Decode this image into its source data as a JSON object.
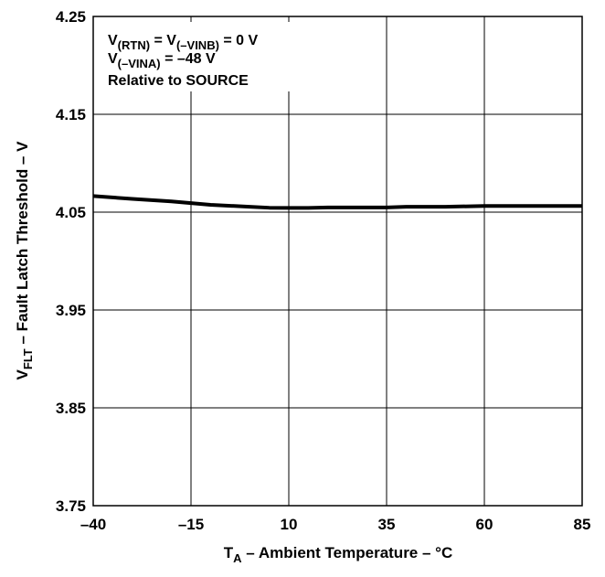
{
  "chart_data": {
    "type": "line",
    "xlabel": {
      "main": "T",
      "sub": "A",
      "rest": " – Ambient Temperature – °C"
    },
    "ylabel": {
      "main": "V",
      "sub": "FLT",
      "rest": " – Fault Latch Threshold – V"
    },
    "xlim": [
      -40,
      85
    ],
    "ylim": [
      3.75,
      4.25
    ],
    "x_ticks": [
      -40,
      -15,
      10,
      35,
      60,
      85
    ],
    "x_tick_labels": [
      "–40",
      "–15",
      "10",
      "35",
      "60",
      "85"
    ],
    "y_ticks": [
      3.75,
      3.85,
      3.95,
      4.05,
      4.15,
      4.25
    ],
    "y_tick_labels": [
      "3.75",
      "3.85",
      "3.95",
      "4.05",
      "4.15",
      "4.25"
    ],
    "grid": true,
    "annotations": [
      {
        "main": "V",
        "sub": "(RTN)",
        "mid": " = V",
        "sub2": "(–VINB)",
        "rest": " = 0 V"
      },
      {
        "main": "V",
        "sub": "(–VINA)",
        "rest": " = –48 V"
      },
      {
        "main": "Relative to SOURCE"
      }
    ],
    "series": [
      {
        "x": [
          -40,
          -30,
          -20,
          -10,
          0,
          5,
          10,
          15,
          20,
          25,
          30,
          35,
          40,
          50,
          60,
          70,
          85
        ],
        "y": [
          4.0665,
          4.0635,
          4.061,
          4.0575,
          4.0555,
          4.0545,
          4.0543,
          4.0543,
          4.0548,
          4.0548,
          4.0548,
          4.0548,
          4.0555,
          4.0555,
          4.0563,
          4.0563,
          4.0563
        ]
      }
    ]
  }
}
